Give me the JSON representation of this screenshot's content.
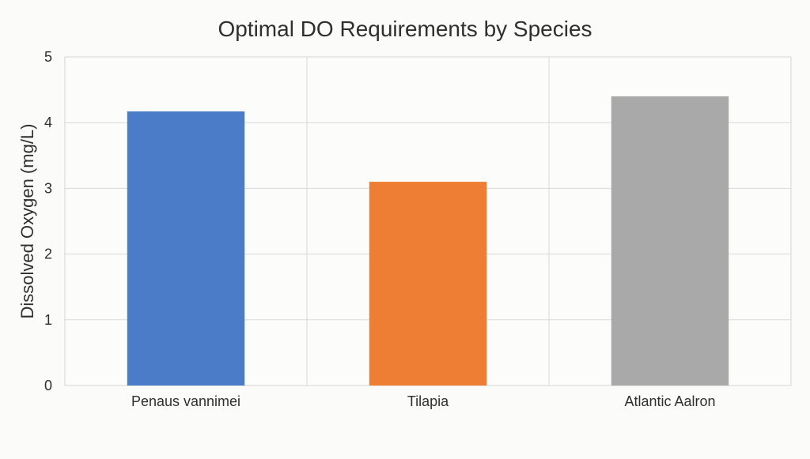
{
  "chart_data": {
    "type": "bar",
    "title": "Optimal DO Requirements by Species",
    "xlabel": "",
    "ylabel": "Dissolved Oxygen (mg/L)",
    "categories": [
      "Penaus vannimei",
      "Tilapia",
      "Atlantic Aalron"
    ],
    "values": [
      4.17,
      3.1,
      4.4
    ],
    "colors": [
      "#4a7cc7",
      "#ee7e33",
      "#a9a9a9"
    ],
    "ylim": [
      0,
      5
    ],
    "yticks": [
      "0",
      "1",
      "2",
      "3",
      "4",
      "5"
    ],
    "grid": true,
    "legend": "none"
  }
}
